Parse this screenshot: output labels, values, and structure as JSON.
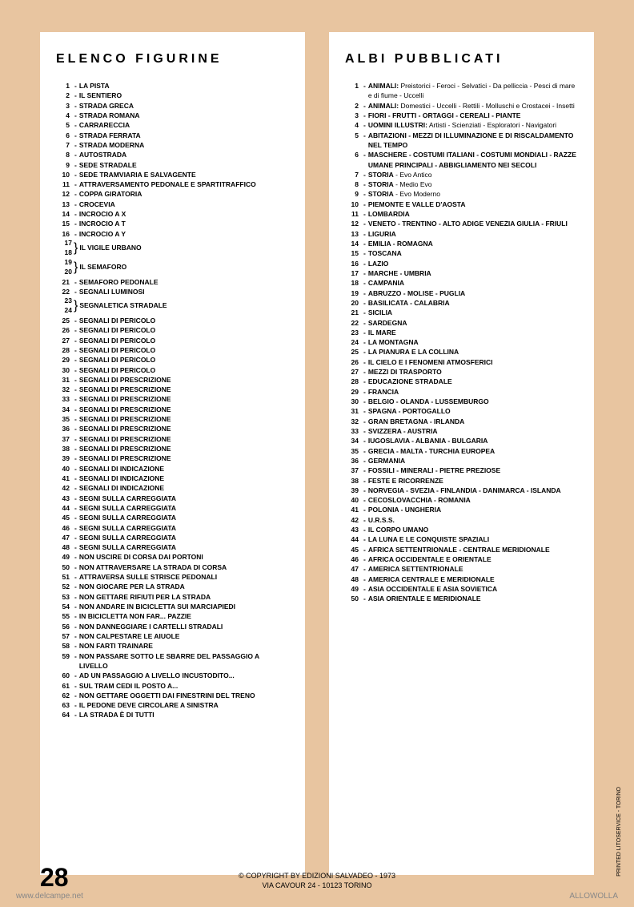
{
  "page_number": "28",
  "copyright_line1": "© COPYRIGHT BY EDIZIONI SALVADEO - 1973",
  "copyright_line2": "VIA CAVOUR 24 - 10123 TORINO",
  "side_print": "PRINTED LITOSERVICE - TORINO",
  "watermark_left": "www.delcampe.net",
  "watermark_right": "ALLOWOLLA",
  "left_column": {
    "title": "ELENCO FIGURINE",
    "items": [
      {
        "num": "1",
        "text": "LA PISTA",
        "bold": true
      },
      {
        "num": "2",
        "text": "IL SENTIERO",
        "bold": true
      },
      {
        "num": "3",
        "text": "STRADA GRECA",
        "bold": true
      },
      {
        "num": "4",
        "text": "STRADA ROMANA",
        "bold": true
      },
      {
        "num": "5",
        "text": "CARRARECCIA",
        "bold": true
      },
      {
        "num": "6",
        "text": "STRADA FERRATA",
        "bold": true
      },
      {
        "num": "7",
        "text": "STRADA MODERNA",
        "bold": true
      },
      {
        "num": "8",
        "text": "AUTOSTRADA",
        "bold": true
      },
      {
        "num": "9",
        "text": "SEDE STRADALE",
        "bold": true
      },
      {
        "num": "10",
        "text": "SEDE TRAMVIARIA E SALVAGENTE",
        "bold": true
      },
      {
        "num": "11",
        "text": "ATTRAVERSAMENTO PEDONALE E SPARTITRAFFICO",
        "bold": true
      },
      {
        "num": "12",
        "text": "COPPA GIRATORIA",
        "bold": true
      },
      {
        "num": "13",
        "text": "CROCEVIA",
        "bold": true
      },
      {
        "num": "14",
        "text": "INCROCIO A X",
        "bold": true
      },
      {
        "num": "15",
        "text": "INCROCIO A T",
        "bold": true
      },
      {
        "num": "16",
        "text": "INCROCIO A Y",
        "bold": true
      }
    ],
    "bracket_items": [
      {
        "nums": [
          "17",
          "18"
        ],
        "text": "IL VIGILE URBANO"
      },
      {
        "nums": [
          "19",
          "20"
        ],
        "text": "IL SEMAFORO"
      }
    ],
    "items2": [
      {
        "num": "21",
        "text": "SEMAFORO PEDONALE",
        "bold": true
      },
      {
        "num": "22",
        "text": "SEGNALI LUMINOSI",
        "bold": true
      }
    ],
    "bracket_items2": [
      {
        "nums": [
          "23",
          "24"
        ],
        "text": "SEGNALETICA STRADALE"
      }
    ],
    "items3": [
      {
        "num": "25",
        "text": "SEGNALI DI PERICOLO",
        "bold": true
      },
      {
        "num": "26",
        "text": "SEGNALI DI PERICOLO",
        "bold": true
      },
      {
        "num": "27",
        "text": "SEGNALI DI PERICOLO",
        "bold": true
      },
      {
        "num": "28",
        "text": "SEGNALI DI PERICOLO",
        "bold": true
      },
      {
        "num": "29",
        "text": "SEGNALI DI PERICOLO",
        "bold": true
      },
      {
        "num": "30",
        "text": "SEGNALI DI PERICOLO",
        "bold": true
      },
      {
        "num": "31",
        "text": "SEGNALI DI PRESCRIZIONE",
        "bold": true
      },
      {
        "num": "32",
        "text": "SEGNALI DI PRESCRIZIONE",
        "bold": true
      },
      {
        "num": "33",
        "text": "SEGNALI DI PRESCRIZIONE",
        "bold": true
      },
      {
        "num": "34",
        "text": "SEGNALI DI PRESCRIZIONE",
        "bold": true
      },
      {
        "num": "35",
        "text": "SEGNALI DI PRESCRIZIONE",
        "bold": true
      },
      {
        "num": "36",
        "text": "SEGNALI DI PRESCRIZIONE",
        "bold": true
      },
      {
        "num": "37",
        "text": "SEGNALI DI PRESCRIZIONE",
        "bold": true
      },
      {
        "num": "38",
        "text": "SEGNALI DI PRESCRIZIONE",
        "bold": true
      },
      {
        "num": "39",
        "text": "SEGNALI DI PRESCRIZIONE",
        "bold": true
      },
      {
        "num": "40",
        "text": "SEGNALI DI INDICAZIONE",
        "bold": true
      },
      {
        "num": "41",
        "text": "SEGNALI DI INDICAZIONE",
        "bold": true
      },
      {
        "num": "42",
        "text": "SEGNALI DI INDICAZIONE",
        "bold": true
      },
      {
        "num": "43",
        "text": "SEGNI SULLA CARREGGIATA",
        "bold": true
      },
      {
        "num": "44",
        "text": "SEGNI SULLA CARREGGIATA",
        "bold": true
      },
      {
        "num": "45",
        "text": "SEGNI SULLA CARREGGIATA",
        "bold": true
      },
      {
        "num": "46",
        "text": "SEGNI SULLA CARREGGIATA",
        "bold": true
      },
      {
        "num": "47",
        "text": "SEGNI SULLA CARREGGIATA",
        "bold": true
      },
      {
        "num": "48",
        "text": "SEGNI SULLA CARREGGIATA",
        "bold": true
      },
      {
        "num": "49",
        "text": "NON USCIRE DI CORSA DAI PORTONI",
        "bold": true
      },
      {
        "num": "50",
        "text": "NON ATTRAVERSARE LA STRADA DI CORSA",
        "bold": true
      },
      {
        "num": "51",
        "text": "ATTRAVERSA SULLE STRISCE PEDONALI",
        "bold": true
      },
      {
        "num": "52",
        "text": "NON GIOCARE PER LA STRADA",
        "bold": true
      },
      {
        "num": "53",
        "text": "NON GETTARE RIFIUTI PER LA STRADA",
        "bold": true
      },
      {
        "num": "54",
        "text": "NON ANDARE IN BICICLETTA SUI MARCIAPIEDI",
        "bold": true
      },
      {
        "num": "55",
        "text": "IN BICICLETTA NON FAR... PAZZIE",
        "bold": true
      },
      {
        "num": "56",
        "text": "NON DANNEGGIARE I CARTELLI STRADALI",
        "bold": true
      },
      {
        "num": "57",
        "text": "NON CALPESTARE LE AIUOLE",
        "bold": true
      },
      {
        "num": "58",
        "text": "NON FARTI TRAINARE",
        "bold": true
      },
      {
        "num": "59",
        "text": "NON PASSARE SOTTO LE SBARRE DEL PASSAGGIO A LIVELLO",
        "bold": true
      },
      {
        "num": "60",
        "text": "AD UN PASSAGGIO A LIVELLO INCUSTODITO...",
        "bold": true
      },
      {
        "num": "61",
        "text": "SUL TRAM CEDI IL POSTO A...",
        "bold": true
      },
      {
        "num": "62",
        "text": "NON GETTARE OGGETTI DAI FINESTRINI DEL TRENO",
        "bold": true
      },
      {
        "num": "63",
        "text": "IL PEDONE DEVE CIRCOLARE A SINISTRA",
        "bold": true
      },
      {
        "num": "64",
        "text": "LA STRADA È DI TUTTI",
        "bold": true
      }
    ]
  },
  "right_column": {
    "title": "ALBI PUBBLICATI",
    "items": [
      {
        "num": "1",
        "bold_part": "ANIMALI:",
        "normal_part": " Preistorici - Feroci - Selvatici - Da pelliccia - Pesci di mare e di fiume - Uccelli"
      },
      {
        "num": "2",
        "bold_part": "ANIMALI:",
        "normal_part": " Domestici - Uccelli - Rettili - Molluschi e Crostacei - Insetti"
      },
      {
        "num": "3",
        "bold_part": "FIORI - FRUTTI - ORTAGGI - CEREALI - PIANTE",
        "normal_part": ""
      },
      {
        "num": "4",
        "bold_part": "UOMINI ILLUSTRI:",
        "normal_part": " Artisti - Scienziati - Esploratori - Navigatori"
      },
      {
        "num": "5",
        "bold_part": "ABITAZIONI - MEZZI DI ILLUMINAZIONE E DI RISCALDAMENTO NEL TEMPO",
        "normal_part": ""
      },
      {
        "num": "6",
        "bold_part": "MASCHERE - COSTUMI ITALIANI - COSTUMI MONDIALI - RAZZE UMANE PRINCIPALI - ABBIGLIAMENTO NEI SECOLI",
        "normal_part": ""
      },
      {
        "num": "7",
        "bold_part": "STORIA",
        "normal_part": " - Evo Antico"
      },
      {
        "num": "8",
        "bold_part": "STORIA",
        "normal_part": " - Medio Evo"
      },
      {
        "num": "9",
        "bold_part": "STORIA",
        "normal_part": " - Evo Moderno"
      },
      {
        "num": "10",
        "bold_part": "PIEMONTE E VALLE D'AOSTA",
        "normal_part": ""
      },
      {
        "num": "11",
        "bold_part": "LOMBARDIA",
        "normal_part": ""
      },
      {
        "num": "12",
        "bold_part": "VENETO - TRENTINO - ALTO ADIGE VENEZIA GIULIA - FRIULI",
        "normal_part": ""
      },
      {
        "num": "13",
        "bold_part": "LIGURIA",
        "normal_part": ""
      },
      {
        "num": "14",
        "bold_part": "EMILIA - ROMAGNA",
        "normal_part": ""
      },
      {
        "num": "15",
        "bold_part": "TOSCANA",
        "normal_part": ""
      },
      {
        "num": "16",
        "bold_part": "LAZIO",
        "normal_part": ""
      },
      {
        "num": "17",
        "bold_part": "MARCHE - UMBRIA",
        "normal_part": ""
      },
      {
        "num": "18",
        "bold_part": "CAMPANIA",
        "normal_part": ""
      },
      {
        "num": "19",
        "bold_part": "ABRUZZO - MOLISE - PUGLIA",
        "normal_part": ""
      },
      {
        "num": "20",
        "bold_part": "BASILICATA - CALABRIA",
        "normal_part": ""
      },
      {
        "num": "21",
        "bold_part": "SICILIA",
        "normal_part": ""
      },
      {
        "num": "22",
        "bold_part": "SARDEGNA",
        "normal_part": ""
      },
      {
        "num": "23",
        "bold_part": "IL MARE",
        "normal_part": ""
      },
      {
        "num": "24",
        "bold_part": "LA MONTAGNA",
        "normal_part": ""
      },
      {
        "num": "25",
        "bold_part": "LA PIANURA E LA COLLINA",
        "normal_part": ""
      },
      {
        "num": "26",
        "bold_part": "IL CIELO E I FENOMENI ATMOSFERICI",
        "normal_part": ""
      },
      {
        "num": "27",
        "bold_part": "MEZZI DI TRASPORTO",
        "normal_part": ""
      },
      {
        "num": "28",
        "bold_part": "EDUCAZIONE STRADALE",
        "normal_part": ""
      },
      {
        "num": "29",
        "bold_part": "FRANCIA",
        "normal_part": ""
      },
      {
        "num": "30",
        "bold_part": "BELGIO - OLANDA - LUSSEMBURGO",
        "normal_part": ""
      },
      {
        "num": "31",
        "bold_part": "SPAGNA - PORTOGALLO",
        "normal_part": ""
      },
      {
        "num": "32",
        "bold_part": "GRAN BRETAGNA - IRLANDA",
        "normal_part": ""
      },
      {
        "num": "33",
        "bold_part": "SVIZZERA - AUSTRIA",
        "normal_part": ""
      },
      {
        "num": "34",
        "bold_part": "IUGOSLAVIA - ALBANIA - BULGARIA",
        "normal_part": ""
      },
      {
        "num": "35",
        "bold_part": "GRECIA - MALTA - TURCHIA EUROPEA",
        "normal_part": ""
      },
      {
        "num": "36",
        "bold_part": "GERMANIA",
        "normal_part": ""
      },
      {
        "num": "37",
        "bold_part": "FOSSILI - MINERALI - PIETRE PREZIOSE",
        "normal_part": ""
      },
      {
        "num": "38",
        "bold_part": "FESTE E RICORRENZE",
        "normal_part": ""
      },
      {
        "num": "39",
        "bold_part": "NORVEGIA - SVEZIA - FINLANDIA - DANIMARCA - ISLANDA",
        "normal_part": ""
      },
      {
        "num": "40",
        "bold_part": "CECOSLOVACCHIA - ROMANIA",
        "normal_part": ""
      },
      {
        "num": "41",
        "bold_part": "POLONIA - UNGHERIA",
        "normal_part": ""
      },
      {
        "num": "42",
        "bold_part": "U.R.S.S.",
        "normal_part": ""
      },
      {
        "num": "43",
        "bold_part": "IL CORPO UMANO",
        "normal_part": ""
      },
      {
        "num": "44",
        "bold_part": "LA LUNA E LE CONQUISTE SPAZIALI",
        "normal_part": ""
      },
      {
        "num": "45",
        "bold_part": "AFRICA SETTENTRIONALE - CENTRALE MERIDIONALE",
        "normal_part": ""
      },
      {
        "num": "46",
        "bold_part": "AFRICA OCCIDENTALE E ORIENTALE",
        "normal_part": ""
      },
      {
        "num": "47",
        "bold_part": "AMERICA SETTENTRIONALE",
        "normal_part": ""
      },
      {
        "num": "48",
        "bold_part": "AMERICA CENTRALE E MERIDIONALE",
        "normal_part": ""
      },
      {
        "num": "49",
        "bold_part": "ASIA OCCIDENTALE E ASIA SOVIETICA",
        "normal_part": ""
      },
      {
        "num": "50",
        "bold_part": "ASIA ORIENTALE E MERIDIONALE",
        "normal_part": ""
      }
    ]
  }
}
